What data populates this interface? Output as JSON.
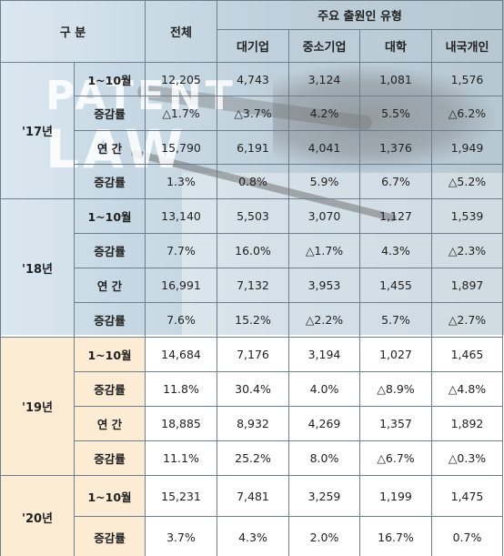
{
  "header": {
    "category": "구 분",
    "total": "전체",
    "group": "주요 출원인 유형",
    "types": [
      "대기업",
      "중소기업",
      "대학",
      "내국개인"
    ]
  },
  "watermark": [
    "PATENT",
    "LAW"
  ],
  "years": [
    {
      "year": "'17년",
      "rows": [
        {
          "label": "1~10월",
          "values": [
            "12,205",
            "4,743",
            "3,124",
            "1,081",
            "1,576"
          ]
        },
        {
          "label": "증감률",
          "values": [
            "△1.7%",
            "△3.7%",
            "4.2%",
            "5.5%",
            "△6.2%"
          ]
        },
        {
          "label": "연 간",
          "values": [
            "15,790",
            "6,191",
            "4,041",
            "1,376",
            "1,949"
          ]
        },
        {
          "label": "증감률",
          "values": [
            "1.3%",
            "0.8%",
            "5.9%",
            "6.7%",
            "△5.2%"
          ]
        }
      ]
    },
    {
      "year": "'18년",
      "rows": [
        {
          "label": "1~10월",
          "values": [
            "13,140",
            "5,503",
            "3,070",
            "1,127",
            "1,539"
          ]
        },
        {
          "label": "증감률",
          "values": [
            "7.7%",
            "16.0%",
            "△1.7%",
            "4.3%",
            "△2.3%"
          ]
        },
        {
          "label": "연 간",
          "values": [
            "16,991",
            "7,132",
            "3,953",
            "1,455",
            "1,897"
          ]
        },
        {
          "label": "증감률",
          "values": [
            "7.6%",
            "15.2%",
            "△2.2%",
            "5.7%",
            "△2.7%"
          ]
        }
      ]
    },
    {
      "year": "'19년",
      "rows": [
        {
          "label": "1~10월",
          "values": [
            "14,684",
            "7,176",
            "3,194",
            "1,027",
            "1,465"
          ]
        },
        {
          "label": "증감률",
          "values": [
            "11.8%",
            "30.4%",
            "4.0%",
            "△8.9%",
            "△4.8%"
          ]
        },
        {
          "label": "연 간",
          "values": [
            "18,885",
            "8,932",
            "4,269",
            "1,357",
            "1,892"
          ]
        },
        {
          "label": "증감률",
          "values": [
            "11.1%",
            "25.2%",
            "8.0%",
            "△6.7%",
            "△0.3%"
          ]
        }
      ]
    },
    {
      "year": "'20년",
      "rows": [
        {
          "label": "1~10월",
          "values": [
            "15,231",
            "7,481",
            "3,259",
            "1,199",
            "1,475"
          ]
        },
        {
          "label": "증감률",
          "values": [
            "3.7%",
            "4.3%",
            "2.0%",
            "16.7%",
            "0.7%"
          ]
        }
      ]
    }
  ]
}
